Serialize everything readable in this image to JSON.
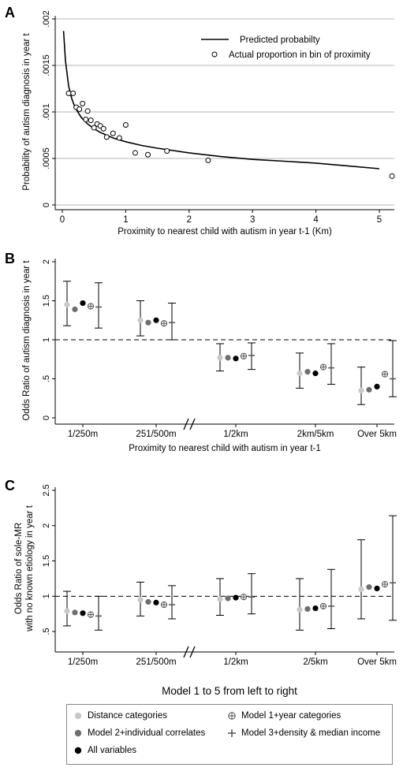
{
  "chart_data": [
    {
      "panel": "A",
      "type": "scatter",
      "xlabel": "Proximity to nearest child with autism in year t-1 (Km)",
      "ylabel": "Probability of autism diagnosis in year t",
      "xlim": [
        0,
        5.3
      ],
      "ylim": [
        0,
        0.002
      ],
      "xticks": [
        "0",
        "1",
        "2",
        "3",
        "4",
        "5"
      ],
      "yticks": [
        "0",
        ".0005",
        ".001",
        ".0015",
        ".002"
      ],
      "grid": true,
      "legend_position": "top-right",
      "legend": [
        "Predicted probabilty",
        "Actual proportion in bin of proximity"
      ],
      "series": [
        {
          "name": "Predicted probabilty",
          "x": [
            0.02,
            0.05,
            0.1,
            0.15,
            0.2,
            0.3,
            0.4,
            0.5,
            0.6,
            0.8,
            1.0,
            1.25,
            1.5,
            2.0,
            2.5,
            3.0,
            3.5,
            4.0,
            4.5,
            5.0
          ],
          "y": [
            0.00187,
            0.00155,
            0.00128,
            0.00114,
            0.00105,
            0.00094,
            0.00087,
            0.00082,
            0.00078,
            0.00072,
            0.00068,
            0.00064,
            0.00061,
            0.00056,
            0.00052,
            0.00049,
            0.00047,
            0.00045,
            0.00042,
            0.00039
          ]
        },
        {
          "name": "Actual proportion in bin of proximity",
          "x": [
            0.1,
            0.17,
            0.22,
            0.27,
            0.32,
            0.37,
            0.4,
            0.45,
            0.5,
            0.55,
            0.6,
            0.65,
            0.7,
            0.8,
            0.9,
            1.0,
            1.15,
            1.35,
            1.65,
            2.3,
            5.2
          ],
          "y": [
            0.0012,
            0.0012,
            0.00105,
            0.00103,
            0.00109,
            0.00092,
            0.00101,
            0.00091,
            0.00083,
            0.00087,
            0.00085,
            0.00082,
            0.00073,
            0.00077,
            0.00072,
            0.00086,
            0.00056,
            0.00054,
            0.00058,
            0.00048,
            0.00031
          ]
        }
      ]
    },
    {
      "panel": "B",
      "type": "scatter",
      "xlabel": "Proximity to nearest child with autism in year t-1",
      "ylabel": "Odds Ratio of autism diagnosis in year t",
      "categories": [
        "1/250m",
        "251/500m",
        "1/2km",
        "2km/5km",
        "Over 5km"
      ],
      "ylim": [
        0,
        2
      ],
      "yticks": [
        "0",
        ".5",
        "1",
        "1.5",
        "2"
      ],
      "reference_line": 1,
      "axis_break": "between 251/500m and 1/2km",
      "models": [
        {
          "name": "Distance categories",
          "or": [
            1.45,
            1.25,
            0.77,
            0.57,
            0.35
          ],
          "ci_low": [
            1.18,
            1.05,
            0.6,
            0.38,
            0.17
          ],
          "ci_high": [
            1.75,
            1.5,
            0.95,
            0.83,
            0.65
          ]
        },
        {
          "name": "Model 2+individual correlates",
          "or": [
            1.39,
            1.22,
            0.77,
            0.59,
            0.36
          ],
          "ci_low": null,
          "ci_high": null
        },
        {
          "name": "All variables",
          "or": [
            1.47,
            1.25,
            0.76,
            0.57,
            0.4
          ],
          "ci_low": null,
          "ci_high": null
        },
        {
          "name": "Model 1+year categories",
          "or": [
            1.43,
            1.21,
            0.79,
            0.65,
            0.56
          ],
          "ci_low": null,
          "ci_high": null
        },
        {
          "name": "Model 3+density & median income",
          "or": [
            1.42,
            1.22,
            0.8,
            0.64,
            0.5
          ],
          "ci_low": [
            1.15,
            1.0,
            0.62,
            0.43,
            0.27
          ],
          "ci_high": [
            1.73,
            1.47,
            0.96,
            0.95,
            0.99
          ]
        }
      ]
    },
    {
      "panel": "C",
      "type": "scatter",
      "xlabel": "",
      "ylabel_line1": "Odds Ratio of sole-MR",
      "ylabel_line2": "with no known etiology in year t",
      "categories": [
        "1/250m",
        "251/500m",
        "1/2km",
        "2/5km",
        "Over 5km"
      ],
      "ylim": [
        0.3,
        2.5
      ],
      "yticks": [
        ".5",
        "1",
        "1.5",
        "2",
        "2.5"
      ],
      "reference_line": 1,
      "axis_break": "between 251/500m and 1/2km",
      "models": [
        {
          "name": "Distance categories",
          "or": [
            0.79,
            0.95,
            0.96,
            0.81,
            1.1
          ],
          "ci_low": [
            0.58,
            0.72,
            0.73,
            0.52,
            0.68
          ],
          "ci_high": [
            1.07,
            1.2,
            1.25,
            1.25,
            1.8
          ]
        },
        {
          "name": "Model 2+individual correlates",
          "or": [
            0.77,
            0.92,
            0.97,
            0.82,
            1.13
          ],
          "ci_low": null,
          "ci_high": null
        },
        {
          "name": "All variables",
          "or": [
            0.76,
            0.91,
            0.98,
            0.83,
            1.11
          ],
          "ci_low": null,
          "ci_high": null
        },
        {
          "name": "Model 1+year categories",
          "or": [
            0.74,
            0.88,
            0.99,
            0.86,
            1.17
          ],
          "ci_low": null,
          "ci_high": null
        },
        {
          "name": "Model 3+density & median income",
          "or": [
            0.72,
            0.88,
            0.99,
            0.86,
            1.19
          ],
          "ci_low": [
            0.52,
            0.68,
            0.75,
            0.54,
            0.66
          ],
          "ci_high": [
            1.0,
            1.15,
            1.32,
            1.38,
            2.14
          ]
        }
      ]
    }
  ],
  "panels": {
    "a": {
      "letter": "A"
    },
    "b": {
      "letter": "B"
    },
    "c": {
      "letter": "C"
    }
  },
  "caption": "Model 1 to 5 from left to right",
  "legend": {
    "items": [
      {
        "label": "Distance categories",
        "symbol": "filled-circle",
        "color": "#c8c8c8"
      },
      {
        "label": "Model 1+year categories",
        "symbol": "circle-plus",
        "color": "#555555"
      },
      {
        "label": "Model 2+individual correlates",
        "symbol": "filled-circle",
        "color": "#6e6e6e"
      },
      {
        "label": "Model 3+density & median income",
        "symbol": "open-plus",
        "color": "#555555"
      },
      {
        "label": "All variables",
        "symbol": "filled-circle",
        "color": "#000000"
      }
    ]
  },
  "colors": {
    "grid": "#b4b4b4",
    "axis": "#000000",
    "model_colors": [
      "#c8c8c8",
      "#6e6e6e",
      "#000000",
      "#555555",
      "#555555"
    ]
  }
}
